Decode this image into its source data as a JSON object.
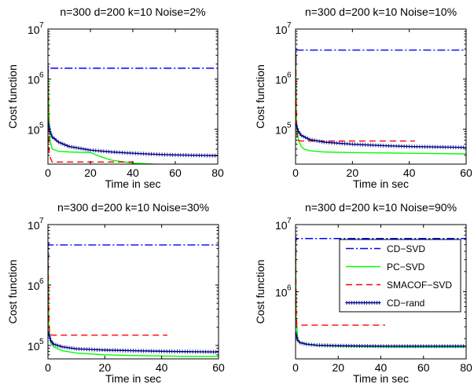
{
  "chart_data": [
    {
      "type": "line",
      "title": "n=300 d=200 k=10 Noise=2%",
      "xlabel": "Time in sec",
      "ylabel": "Cost function",
      "yscale": "log",
      "xlim": [
        0,
        80
      ],
      "ylim": [
        20000,
        10000000
      ],
      "xticks": [
        0,
        20,
        40,
        60,
        80
      ],
      "yticks": [
        {
          "v": 100000,
          "b": "10",
          "e": "5"
        },
        {
          "v": 1000000,
          "b": "10",
          "e": "6"
        },
        {
          "v": 10000000,
          "b": "10",
          "e": "7"
        }
      ],
      "series": [
        {
          "name": "CD−SVD",
          "x": [
            0,
            0.2,
            0.5,
            80
          ],
          "y": [
            300000,
            1800000,
            1650000,
            1650000
          ]
        },
        {
          "name": "PC−SVD",
          "x": [
            0,
            0.5,
            1,
            2,
            5,
            10,
            20,
            25,
            30,
            40,
            50,
            60,
            70
          ],
          "y": [
            1600000,
            200000,
            60000,
            40000,
            36000,
            35000,
            34000,
            28000,
            24000,
            21000,
            20000,
            19500,
            19000
          ]
        },
        {
          "name": "SMACOF−SVD",
          "x": [
            0,
            0.3,
            0.6,
            2,
            5,
            10,
            20,
            40
          ],
          "y": [
            1900000,
            100000,
            30000,
            22000,
            22000,
            22000,
            22000,
            22000
          ]
        },
        {
          "name": "CD−rand",
          "x": [
            0,
            1,
            2,
            5,
            10,
            20,
            30,
            40,
            50,
            60,
            70,
            80
          ],
          "y": [
            140000,
            90000,
            70000,
            55000,
            45000,
            38000,
            35000,
            33000,
            31500,
            30500,
            30000,
            29500
          ]
        }
      ]
    },
    {
      "type": "line",
      "title": "n=300 d=200 k=10 Noise=10%",
      "xlabel": "Time in sec",
      "ylabel": "Cost function",
      "yscale": "log",
      "xlim": [
        0,
        60
      ],
      "ylim": [
        20000,
        10000000
      ],
      "xticks": [
        0,
        20,
        40,
        60
      ],
      "yticks": [
        {
          "v": 100000,
          "b": "10",
          "e": "5"
        },
        {
          "v": 1000000,
          "b": "10",
          "e": "6"
        },
        {
          "v": 10000000,
          "b": "10",
          "e": "7"
        }
      ],
      "series": [
        {
          "name": "CD−SVD",
          "x": [
            0,
            0.2,
            0.5,
            60
          ],
          "y": [
            300000,
            4000000,
            3800000,
            3800000
          ]
        },
        {
          "name": "PC−SVD",
          "x": [
            0,
            0.3,
            1,
            2,
            3,
            5,
            10,
            20,
            30,
            40,
            50,
            60
          ],
          "y": [
            3500000,
            150000,
            60000,
            45000,
            40000,
            37000,
            35000,
            34000,
            33500,
            33000,
            32500,
            32000
          ]
        },
        {
          "name": "SMACOF−SVD",
          "x": [
            0,
            0.3,
            0.6,
            2,
            10,
            20,
            30,
            42
          ],
          "y": [
            4000000,
            200000,
            60000,
            58000,
            58000,
            58000,
            58000,
            58000
          ]
        },
        {
          "name": "CD−rand",
          "x": [
            0,
            1,
            2,
            5,
            10,
            20,
            30,
            40,
            50,
            60
          ],
          "y": [
            130000,
            90000,
            75000,
            62000,
            55000,
            50000,
            47000,
            45000,
            44000,
            43000
          ]
        }
      ]
    },
    {
      "type": "line",
      "title": "n=300 d=200 k=10 Noise=30%",
      "xlabel": "Time in sec",
      "ylabel": "Cost function",
      "yscale": "log",
      "xlim": [
        0,
        60
      ],
      "ylim": [
        60000,
        10000000
      ],
      "xticks": [
        0,
        20,
        40,
        60
      ],
      "yticks": [
        {
          "v": 100000,
          "b": "10",
          "e": "5"
        },
        {
          "v": 1000000,
          "b": "10",
          "e": "6"
        },
        {
          "v": 10000000,
          "b": "10",
          "e": "7"
        }
      ],
      "series": [
        {
          "name": "CD−SVD",
          "x": [
            0,
            0.2,
            0.5,
            60
          ],
          "y": [
            300000,
            4800000,
            4600000,
            4600000
          ]
        },
        {
          "name": "PC−SVD",
          "x": [
            0,
            0.3,
            1,
            2,
            5,
            10,
            20,
            30,
            40,
            50,
            60
          ],
          "y": [
            4500000,
            200000,
            110000,
            95000,
            82000,
            75000,
            70000,
            68000,
            67000,
            66000,
            66000
          ]
        },
        {
          "name": "SMACOF−SVD",
          "x": [
            0,
            0.3,
            0.6,
            2,
            10,
            20,
            30,
            42
          ],
          "y": [
            4800000,
            300000,
            150000,
            148000,
            148000,
            148000,
            148000,
            148000
          ]
        },
        {
          "name": "CD−rand",
          "x": [
            0,
            1,
            2,
            5,
            10,
            20,
            30,
            40,
            50,
            60
          ],
          "y": [
            170000,
            120000,
            105000,
            95000,
            88000,
            84000,
            82000,
            80000,
            79000,
            78000
          ]
        }
      ]
    },
    {
      "type": "line",
      "title": "n=300 d=200 k=10 Noise=90%",
      "xlabel": "Time in sec",
      "ylabel": "Cost function",
      "yscale": "log",
      "xlim": [
        0,
        80
      ],
      "ylim": [
        100000,
        10000000
      ],
      "xticks": [
        0,
        20,
        40,
        60,
        80
      ],
      "yticks": [
        {
          "v": 1000000,
          "b": "10",
          "e": "6"
        },
        {
          "v": 10000000,
          "b": "10",
          "e": "7"
        }
      ],
      "legend": {
        "location": "upper-right"
      },
      "series": [
        {
          "name": "CD−SVD",
          "x": [
            0,
            0.2,
            0.5,
            80
          ],
          "y": [
            300000,
            6400000,
            6200000,
            6200000
          ]
        },
        {
          "name": "PC−SVD",
          "x": [
            0,
            0.3,
            1,
            2,
            5,
            10,
            20,
            30,
            40,
            50,
            60,
            70,
            80
          ],
          "y": [
            6000000,
            400000,
            200000,
            175000,
            165000,
            158000,
            154000,
            152000,
            151000,
            150000,
            150000,
            150000,
            150000
          ]
        },
        {
          "name": "SMACOF−SVD",
          "x": [
            0,
            0.3,
            0.6,
            2,
            10,
            20,
            30,
            42
          ],
          "y": [
            6400000,
            500000,
            320000,
            318000,
            318000,
            318000,
            318000,
            318000
          ]
        },
        {
          "name": "CD−rand",
          "x": [
            0,
            1,
            2,
            5,
            10,
            20,
            30,
            40,
            50,
            60,
            70,
            80
          ],
          "y": [
            250000,
            190000,
            175000,
            166000,
            160000,
            157000,
            156000,
            155000,
            155000,
            155000,
            155000,
            155000
          ]
        }
      ]
    }
  ],
  "styles": {
    "CD−SVD": {
      "color": "#0000ff",
      "dash": "10,3,2,3"
    },
    "PC−SVD": {
      "color": "#00ff00",
      "dash": ""
    },
    "SMACOF−SVD": {
      "color": "#ff0000",
      "dash": "8,5"
    },
    "CD−rand": {
      "color": "#00008b",
      "dash": "",
      "marker": "plus"
    }
  },
  "legend_entries": [
    "CD−SVD",
    "PC−SVD",
    "SMACOF−SVD",
    "CD−rand"
  ]
}
